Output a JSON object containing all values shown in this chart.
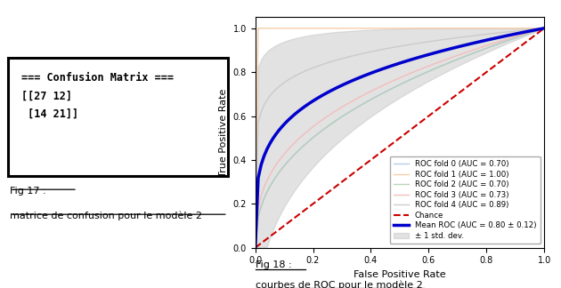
{
  "confusion_matrix_text": "=== Confusion Matrix ===\n[[27 12]\n [14 21]]",
  "fig17_label": "Fig 17 :",
  "fig17_sublabel": "matrice de confusion pour le modèle 2",
  "fig18_label": "Fig 18 :",
  "fig18_sublabel": "courbes de ROC pour le modèle 2",
  "roc_folds": [
    {
      "auc": 0.7,
      "color": "#aec6e8",
      "label": "ROC fold 0 (AUC = 0.70)"
    },
    {
      "auc": 1.0,
      "color": "#f5c9a0",
      "label": "ROC fold 1 (AUC = 1.00)"
    },
    {
      "auc": 0.7,
      "color": "#b5cfb5",
      "label": "ROC fold 2 (AUC = 0.70)"
    },
    {
      "auc": 0.73,
      "color": "#f5b8b8",
      "label": "ROC fold 3 (AUC = 0.73)"
    },
    {
      "auc": 0.89,
      "color": "#c8c8c8",
      "label": "ROC fold 4 (AUC = 0.89)"
    }
  ],
  "mean_auc": 0.8,
  "mean_std": 0.12,
  "mean_color": "#0000cc",
  "chance_color": "#cc0000",
  "std_fill_color": "#c0c0c0",
  "xlabel": "False Positive Rate",
  "ylabel": "True Positive Rate",
  "xlim": [
    0.0,
    1.0
  ],
  "ylim": [
    0.0,
    1.05
  ]
}
